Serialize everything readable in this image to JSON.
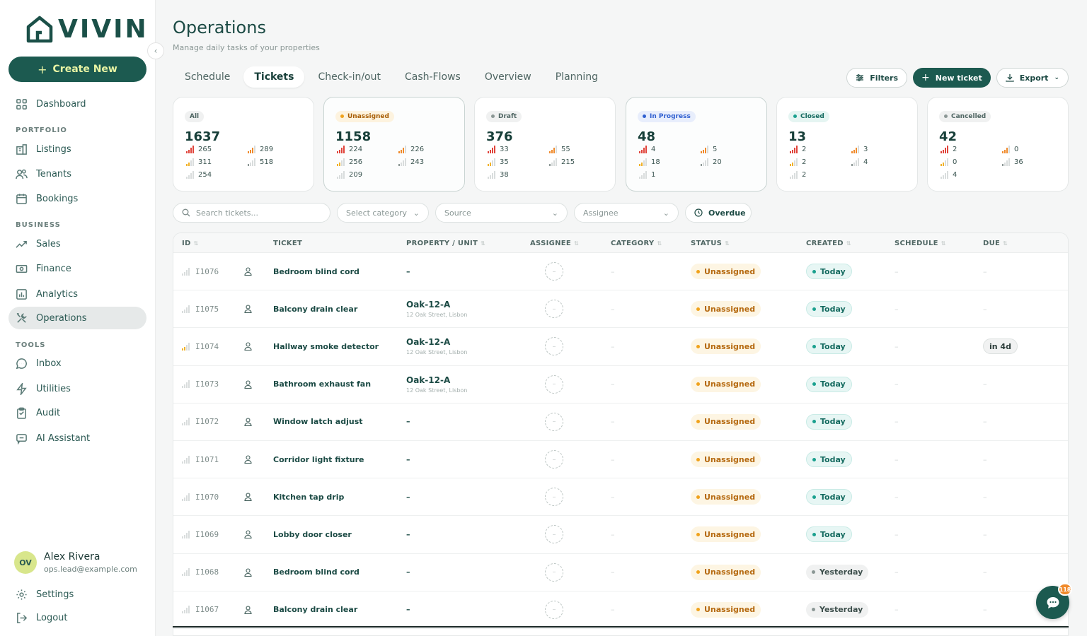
{
  "app": {
    "logo_text": "VIVIN",
    "create_label": "Create New"
  },
  "nav": {
    "dashboard": "Dashboard",
    "sections": {
      "portfolio": "PORTFOLIO",
      "business": "BUSINESS",
      "tools": "TOOLS"
    },
    "listings": "Listings",
    "tenants": "Tenants",
    "bookings": "Bookings",
    "sales": "Sales",
    "finance": "Finance",
    "analytics": "Analytics",
    "operations": "Operations",
    "inbox": "Inbox",
    "utilities": "Utilities",
    "audit": "Audit",
    "ai_assistant": "AI Assistant",
    "settings": "Settings",
    "logout": "Logout"
  },
  "user": {
    "initials": "OV",
    "name": "Alex Rivera",
    "email": "ops.lead@example.com"
  },
  "page": {
    "title": "Operations",
    "subtitle": "Manage daily tasks of your properties"
  },
  "tabs": [
    "Schedule",
    "Tickets",
    "Check-in/out",
    "Cash-Flows",
    "Overview",
    "Planning"
  ],
  "active_tab": "Tickets",
  "actions": {
    "filters": "Filters",
    "new_ticket": "New ticket",
    "export": "Export"
  },
  "cards": [
    {
      "label": "All",
      "dot": "",
      "value": "1637",
      "urgent": "265",
      "high": "289",
      "medium": "311",
      "low": "518",
      "none": "254"
    },
    {
      "label": "Unassigned",
      "dot": "#f0a21b",
      "value": "1158",
      "urgent": "224",
      "high": "226",
      "medium": "256",
      "low": "243",
      "none": "209"
    },
    {
      "label": "Draft",
      "dot": "#8b9795",
      "value": "376",
      "urgent": "33",
      "high": "55",
      "medium": "35",
      "low": "215",
      "none": "38"
    },
    {
      "label": "In Progress",
      "dot": "#2f5fd0",
      "value": "48",
      "urgent": "4",
      "high": "5",
      "medium": "18",
      "low": "20",
      "none": "1"
    },
    {
      "label": "Closed",
      "dot": "#1aa08e",
      "value": "13",
      "urgent": "2",
      "high": "3",
      "medium": "2",
      "low": "4",
      "none": "2"
    },
    {
      "label": "Cancelled",
      "dot": "#8b9795",
      "value": "42",
      "urgent": "2",
      "high": "0",
      "medium": "0",
      "low": "36",
      "none": "4"
    }
  ],
  "filters": {
    "search_placeholder": "Search tickets...",
    "category": "Select category",
    "source": "Source",
    "assignee": "Assignee",
    "overdue": "Overdue"
  },
  "table": {
    "headers": {
      "id": "ID",
      "ticket": "TICKET",
      "property": "PROPERTY / UNIT",
      "assignee": "ASSIGNEE",
      "category": "CATEGORY",
      "status": "STATUS",
      "created": "CREATED",
      "schedule": "SCHEDULE",
      "due": "DUE"
    },
    "rows": [
      {
        "id": "I1076",
        "priority": "none",
        "ticket": "Bedroom blind cord",
        "unit": "",
        "address": "",
        "status": "Unassigned",
        "created": "Today",
        "due": ""
      },
      {
        "id": "I1075",
        "priority": "none",
        "ticket": "Balcony drain clear",
        "unit": "Oak-12-A",
        "address": "12 Oak Street, Lisbon",
        "status": "Unassigned",
        "created": "Today",
        "due": ""
      },
      {
        "id": "I1074",
        "priority": "medium",
        "ticket": "Hallway smoke detector",
        "unit": "Oak-12-A",
        "address": "12 Oak Street, Lisbon",
        "status": "Unassigned",
        "created": "Today",
        "due": "in 4d"
      },
      {
        "id": "I1073",
        "priority": "none",
        "ticket": "Bathroom exhaust fan",
        "unit": "Oak-12-A",
        "address": "12 Oak Street, Lisbon",
        "status": "Unassigned",
        "created": "Today",
        "due": ""
      },
      {
        "id": "I1072",
        "priority": "none",
        "ticket": "Window latch adjust",
        "unit": "",
        "address": "",
        "status": "Unassigned",
        "created": "Today",
        "due": ""
      },
      {
        "id": "I1071",
        "priority": "none",
        "ticket": "Corridor light fixture",
        "unit": "",
        "address": "",
        "status": "Unassigned",
        "created": "Today",
        "due": ""
      },
      {
        "id": "I1070",
        "priority": "none",
        "ticket": "Kitchen tap drip",
        "unit": "",
        "address": "",
        "status": "Unassigned",
        "created": "Today",
        "due": ""
      },
      {
        "id": "I1069",
        "priority": "none",
        "ticket": "Lobby door closer",
        "unit": "",
        "address": "",
        "status": "Unassigned",
        "created": "Today",
        "due": ""
      },
      {
        "id": "I1068",
        "priority": "none",
        "ticket": "Bedroom blind cord",
        "unit": "",
        "address": "",
        "status": "Unassigned",
        "created": "Yesterday",
        "due": ""
      },
      {
        "id": "I1067",
        "priority": "none",
        "ticket": "Balcony drain clear",
        "unit": "",
        "address": "",
        "status": "Unassigned",
        "created": "Yesterday",
        "due": ""
      }
    ]
  },
  "chat": {
    "badge": "118"
  }
}
